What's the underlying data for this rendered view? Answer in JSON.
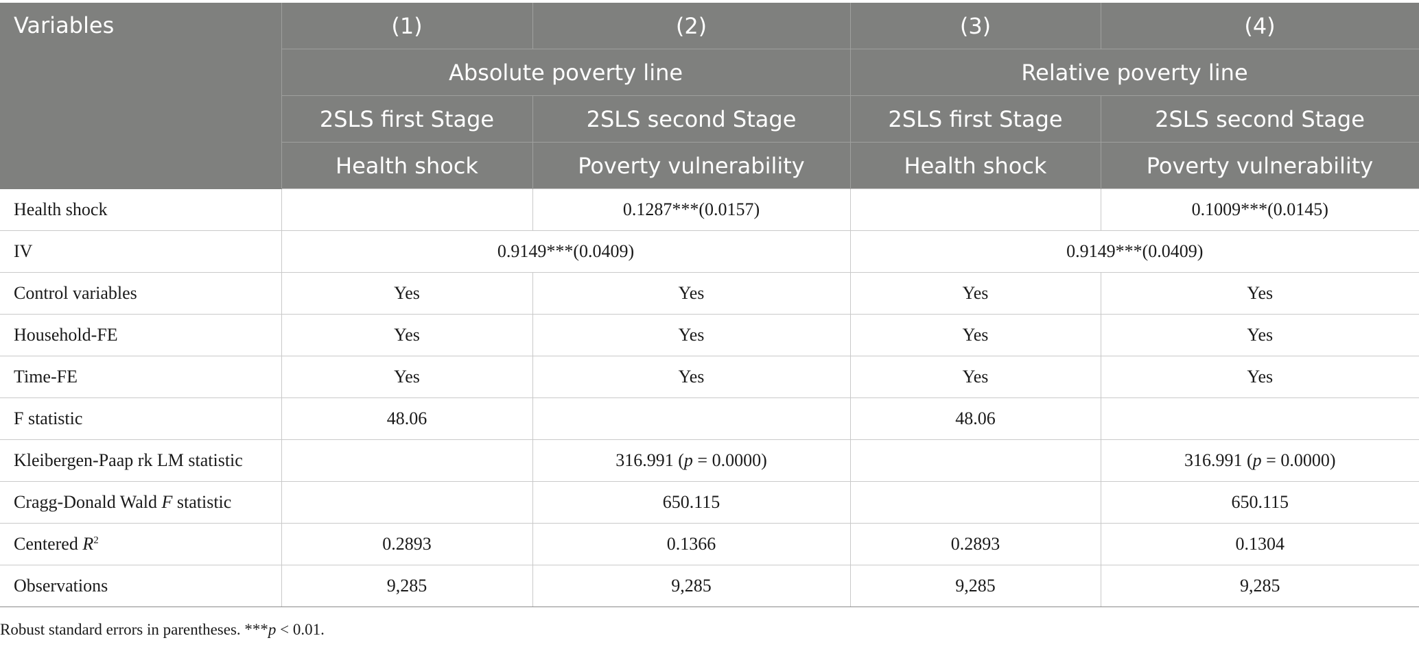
{
  "header": {
    "variables": "Variables",
    "columns": [
      "(1)",
      "(2)",
      "(3)",
      "(4)"
    ],
    "groups": [
      "Absolute poverty line",
      "Relative poverty line"
    ],
    "stages": [
      "2SLS first Stage",
      "2SLS second Stage",
      "2SLS first Stage",
      "2SLS second Stage"
    ],
    "dependents": [
      "Health shock",
      "Poverty vulnerability",
      "Health shock",
      "Poverty vulnerability"
    ]
  },
  "rows": {
    "health_shock": {
      "label": "Health shock",
      "c2": "0.1287***(0.0157)",
      "c4": "0.1009***(0.0145)"
    },
    "iv": {
      "label": "IV",
      "abs": "0.9149***(0.0409)",
      "rel": "0.9149***(0.0409)"
    },
    "control": {
      "label": "Control variables",
      "values": [
        "Yes",
        "Yes",
        "Yes",
        "Yes"
      ]
    },
    "household_fe": {
      "label": "Household-FE",
      "values": [
        "Yes",
        "Yes",
        "Yes",
        "Yes"
      ]
    },
    "time_fe": {
      "label": "Time-FE",
      "values": [
        "Yes",
        "Yes",
        "Yes",
        "Yes"
      ]
    },
    "f_stat": {
      "label": "F statistic",
      "c1": "48.06",
      "c3": "48.06"
    },
    "kp": {
      "label": "Kleibergen-Paap rk LM statistic",
      "c2": {
        "pre": "316.991 (",
        "p": "p",
        "post": " = 0.0000)"
      },
      "c4": {
        "pre": "316.991 (",
        "p": "p",
        "post": " = 0.0000)"
      }
    },
    "cd": {
      "label_pre": "Cragg-Donald Wald ",
      "label_f": "F",
      "label_post": " statistic",
      "c2": "650.115",
      "c4": "650.115"
    },
    "r2": {
      "label_pre": "Centered ",
      "label_r": "R",
      "label_sup": "2",
      "values": [
        "0.2893",
        "0.1366",
        "0.2893",
        "0.1304"
      ]
    },
    "obs": {
      "label": "Observations",
      "values": [
        "9,285",
        "9,285",
        "9,285",
        "9,285"
      ]
    }
  },
  "note": {
    "pre": "Robust standard errors in parentheses. ***",
    "p": "p",
    "post": " < 0.01."
  }
}
